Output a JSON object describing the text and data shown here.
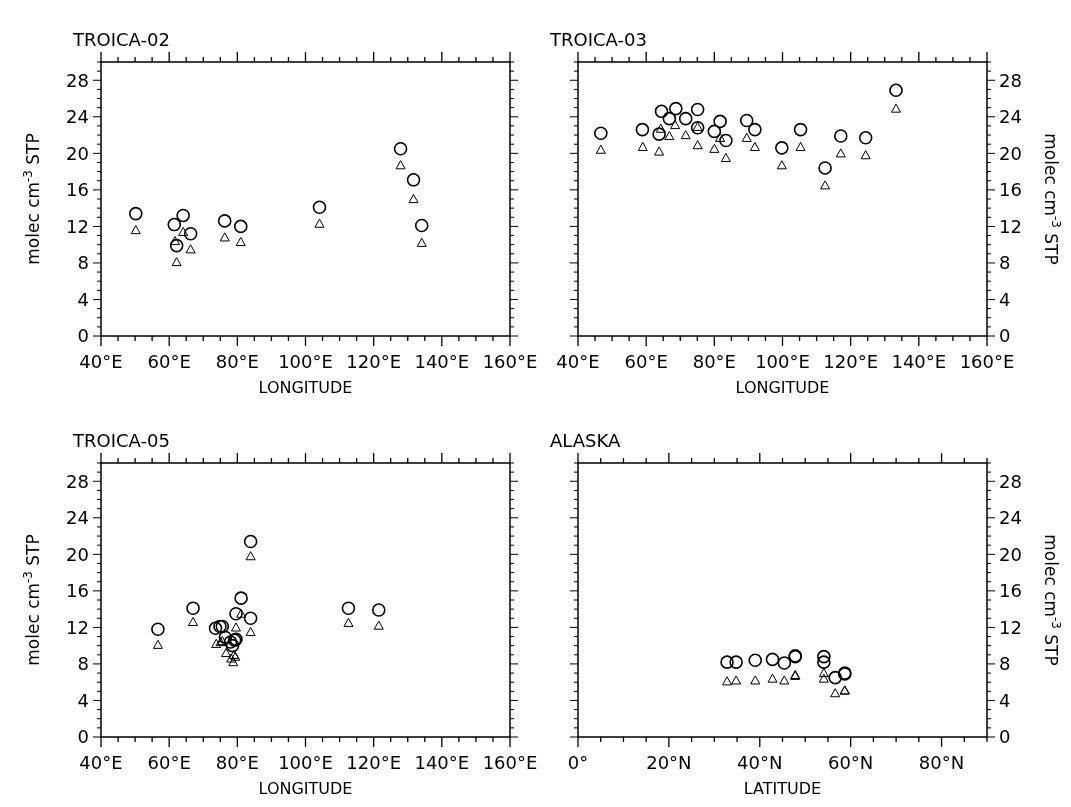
{
  "chart_data": [
    {
      "type": "scatter",
      "title": "TROICA-02",
      "xlabel": "LONGITUDE",
      "ylabel": "molec cm$^{-3}$ STP",
      "xlim": [
        40,
        160
      ],
      "ylim": [
        0,
        30
      ],
      "xticks": [
        {
          "value": 40,
          "label": "40°E"
        },
        {
          "value": 45,
          "label": null
        },
        {
          "value": 50,
          "label": null
        },
        {
          "value": 55,
          "label": null
        },
        {
          "value": 60,
          "label": "60°E"
        },
        {
          "value": 65,
          "label": null
        },
        {
          "value": 70,
          "label": null
        },
        {
          "value": 75,
          "label": null
        },
        {
          "value": 80,
          "label": "80°E"
        },
        {
          "value": 85,
          "label": null
        },
        {
          "value": 90,
          "label": null
        },
        {
          "value": 95,
          "label": null
        },
        {
          "value": 100,
          "label": "100°E"
        },
        {
          "value": 105,
          "label": null
        },
        {
          "value": 110,
          "label": null
        },
        {
          "value": 115,
          "label": null
        },
        {
          "value": 120,
          "label": "120°E"
        },
        {
          "value": 125,
          "label": null
        },
        {
          "value": 130,
          "label": null
        },
        {
          "value": 135,
          "label": null
        },
        {
          "value": 140,
          "label": "140°E"
        },
        {
          "value": 145,
          "label": null
        },
        {
          "value": 150,
          "label": null
        },
        {
          "value": 155,
          "label": null
        },
        {
          "value": 160,
          "label": "160°E"
        }
      ],
      "yticks": [
        0,
        {
          "value": 1,
          "label": null
        },
        {
          "value": 2,
          "label": null
        },
        {
          "value": 3,
          "label": null
        },
        4,
        {
          "value": 5,
          "label": null
        },
        {
          "value": 6,
          "label": null
        },
        {
          "value": 7,
          "label": null
        },
        8,
        {
          "value": 9,
          "label": null
        },
        {
          "value": 10,
          "label": null
        },
        {
          "value": 11,
          "label": null
        },
        12,
        {
          "value": 13,
          "label": null
        },
        {
          "value": 14,
          "label": null
        },
        {
          "value": 15,
          "label": null
        },
        16,
        {
          "value": 17,
          "label": null
        },
        {
          "value": 18,
          "label": null
        },
        {
          "value": 19,
          "label": null
        },
        20,
        {
          "value": 21,
          "label": null
        },
        {
          "value": 22,
          "label": null
        },
        {
          "value": 23,
          "label": null
        },
        24,
        {
          "value": 25,
          "label": null
        },
        {
          "value": 26,
          "label": null
        },
        {
          "value": 27,
          "label": null
        },
        28,
        {
          "value": 29,
          "label": null
        },
        {
          "value": 30,
          "label": null
        }
      ],
      "series": [
        {
          "color": "#000000",
          "marker": "circle",
          "x": [
            50.2,
            61.5,
            62.2,
            64.1,
            66.3,
            76.3,
            81.0,
            104.1,
            127.9,
            131.7,
            134.1
          ],
          "values": [
            13.4,
            12.2,
            9.9,
            13.2,
            11.2,
            12.6,
            12.0,
            14.1,
            20.5,
            17.1,
            12.1
          ]
        },
        {
          "color": "#000000",
          "marker": "triangle",
          "x": [
            50.2,
            61.7,
            62.2,
            64.1,
            66.3,
            76.3,
            81.0,
            104.1,
            127.9,
            131.7,
            134.1
          ],
          "values": [
            11.6,
            10.4,
            8.1,
            11.4,
            9.5,
            10.8,
            10.3,
            12.3,
            18.7,
            15.0,
            10.2
          ]
        }
      ]
    },
    {
      "type": "scatter",
      "title": "TROICA-03",
      "xlabel": "LONGITUDE",
      "ylabel": "molec cm$^{-3}$ STP",
      "xlim": [
        40,
        160
      ],
      "ylim": [
        0,
        30
      ],
      "xticks": [
        {
          "value": 40,
          "label": "40°E"
        },
        {
          "value": 45,
          "label": null
        },
        {
          "value": 50,
          "label": null
        },
        {
          "value": 55,
          "label": null
        },
        {
          "value": 60,
          "label": "60°E"
        },
        {
          "value": 65,
          "label": null
        },
        {
          "value": 70,
          "label": null
        },
        {
          "value": 75,
          "label": null
        },
        {
          "value": 80,
          "label": "80°E"
        },
        {
          "value": 85,
          "label": null
        },
        {
          "value": 90,
          "label": null
        },
        {
          "value": 95,
          "label": null
        },
        {
          "value": 100,
          "label": "100°E"
        },
        {
          "value": 105,
          "label": null
        },
        {
          "value": 110,
          "label": null
        },
        {
          "value": 115,
          "label": null
        },
        {
          "value": 120,
          "label": "120°E"
        },
        {
          "value": 125,
          "label": null
        },
        {
          "value": 130,
          "label": null
        },
        {
          "value": 135,
          "label": null
        },
        {
          "value": 140,
          "label": "140°E"
        },
        {
          "value": 145,
          "label": null
        },
        {
          "value": 150,
          "label": null
        },
        {
          "value": 155,
          "label": null
        },
        {
          "value": 160,
          "label": "160°E"
        }
      ],
      "yticks": [
        0,
        {
          "value": 1,
          "label": null
        },
        {
          "value": 2,
          "label": null
        },
        {
          "value": 3,
          "label": null
        },
        4,
        {
          "value": 5,
          "label": null
        },
        {
          "value": 6,
          "label": null
        },
        {
          "value": 7,
          "label": null
        },
        8,
        {
          "value": 9,
          "label": null
        },
        {
          "value": 10,
          "label": null
        },
        {
          "value": 11,
          "label": null
        },
        12,
        {
          "value": 13,
          "label": null
        },
        {
          "value": 14,
          "label": null
        },
        {
          "value": 15,
          "label": null
        },
        16,
        {
          "value": 17,
          "label": null
        },
        {
          "value": 18,
          "label": null
        },
        {
          "value": 19,
          "label": null
        },
        20,
        {
          "value": 21,
          "label": null
        },
        {
          "value": 22,
          "label": null
        },
        {
          "value": 23,
          "label": null
        },
        24,
        {
          "value": 25,
          "label": null
        },
        {
          "value": 26,
          "label": null
        },
        {
          "value": 27,
          "label": null
        },
        28,
        {
          "value": 29,
          "label": null
        },
        {
          "value": 30,
          "label": null
        }
      ],
      "series": [
        {
          "color": "#000000",
          "marker": "circle",
          "x": [
            46.7,
            58.9,
            63.8,
            64.5,
            66.8,
            68.7,
            71.6,
            75.1,
            75.1,
            80.0,
            81.7,
            83.4,
            89.5,
            91.9,
            99.8,
            105.3,
            112.5,
            117.1,
            124.4,
            133.3
          ],
          "values": [
            22.2,
            22.6,
            22.1,
            24.6,
            23.8,
            24.9,
            23.8,
            24.8,
            22.8,
            22.4,
            23.5,
            21.4,
            23.6,
            22.6,
            20.6,
            22.6,
            18.4,
            21.9,
            21.7,
            26.9
          ]
        },
        {
          "color": "#000000",
          "marker": "triangle",
          "x": [
            46.7,
            59.0,
            63.8,
            64.3,
            66.8,
            68.5,
            71.6,
            75.1,
            75.1,
            80.0,
            81.7,
            83.4,
            89.5,
            91.9,
            99.8,
            105.3,
            112.5,
            117.1,
            124.4,
            133.3
          ],
          "values": [
            20.4,
            20.7,
            20.2,
            22.7,
            21.9,
            23.1,
            22.0,
            20.9,
            22.9,
            20.5,
            21.7,
            19.5,
            21.7,
            20.7,
            18.7,
            20.7,
            16.5,
            20.0,
            19.8,
            24.9
          ]
        }
      ]
    },
    {
      "type": "scatter",
      "title": "TROICA-05",
      "xlabel": "LONGITUDE",
      "ylabel": "molec cm$^{-3}$ STP",
      "xlim": [
        40,
        160
      ],
      "ylim": [
        0,
        30
      ],
      "xticks": [
        {
          "value": 40,
          "label": "40°E"
        },
        {
          "value": 45,
          "label": null
        },
        {
          "value": 50,
          "label": null
        },
        {
          "value": 55,
          "label": null
        },
        {
          "value": 60,
          "label": "60°E"
        },
        {
          "value": 65,
          "label": null
        },
        {
          "value": 70,
          "label": null
        },
        {
          "value": 75,
          "label": null
        },
        {
          "value": 80,
          "label": "80°E"
        },
        {
          "value": 85,
          "label": null
        },
        {
          "value": 90,
          "label": null
        },
        {
          "value": 95,
          "label": null
        },
        {
          "value": 100,
          "label": "100°E"
        },
        {
          "value": 105,
          "label": null
        },
        {
          "value": 110,
          "label": null
        },
        {
          "value": 115,
          "label": null
        },
        {
          "value": 120,
          "label": "120°E"
        },
        {
          "value": 125,
          "label": null
        },
        {
          "value": 130,
          "label": null
        },
        {
          "value": 135,
          "label": null
        },
        {
          "value": 140,
          "label": "140°E"
        },
        {
          "value": 145,
          "label": null
        },
        {
          "value": 150,
          "label": null
        },
        {
          "value": 155,
          "label": null
        },
        {
          "value": 160,
          "label": "160°E"
        }
      ],
      "yticks": [
        0,
        {
          "value": 1,
          "label": null
        },
        {
          "value": 2,
          "label": null
        },
        {
          "value": 3,
          "label": null
        },
        4,
        {
          "value": 5,
          "label": null
        },
        {
          "value": 6,
          "label": null
        },
        {
          "value": 7,
          "label": null
        },
        8,
        {
          "value": 9,
          "label": null
        },
        {
          "value": 10,
          "label": null
        },
        {
          "value": 11,
          "label": null
        },
        12,
        {
          "value": 13,
          "label": null
        },
        {
          "value": 14,
          "label": null
        },
        {
          "value": 15,
          "label": null
        },
        16,
        {
          "value": 17,
          "label": null
        },
        {
          "value": 18,
          "label": null
        },
        {
          "value": 19,
          "label": null
        },
        20,
        {
          "value": 21,
          "label": null
        },
        {
          "value": 22,
          "label": null
        },
        {
          "value": 23,
          "label": null
        },
        24,
        {
          "value": 25,
          "label": null
        },
        {
          "value": 26,
          "label": null
        },
        {
          "value": 27,
          "label": null
        },
        28,
        {
          "value": 29,
          "label": null
        },
        {
          "value": 30,
          "label": null
        }
      ],
      "series": [
        {
          "color": "#000000",
          "marker": "circle",
          "x": [
            56.7,
            67.0,
            73.6,
            74.9,
            75.6,
            76.5,
            78.0,
            78.6,
            79.2,
            79.6,
            79.6,
            81.1,
            83.9,
            83.9,
            112.6,
            121.5
          ],
          "values": [
            11.8,
            14.1,
            11.9,
            12.1,
            12.1,
            10.9,
            10.4,
            10.0,
            10.6,
            10.7,
            13.5,
            15.2,
            13.0,
            21.4,
            14.1,
            13.9
          ]
        },
        {
          "color": "#000000",
          "marker": "triangle",
          "x": [
            56.7,
            67.0,
            73.8,
            75.1,
            75.6,
            76.7,
            78.2,
            78.8,
            79.0,
            79.4,
            79.6,
            81.1,
            83.9,
            83.9,
            112.6,
            121.5
          ],
          "values": [
            10.1,
            12.6,
            10.2,
            10.4,
            10.5,
            9.2,
            8.6,
            8.2,
            9.0,
            8.8,
            12.0,
            13.5,
            19.8,
            11.5,
            12.5,
            12.2
          ]
        }
      ]
    },
    {
      "type": "scatter",
      "title": "ALASKA",
      "xlabel": "LATITUDE",
      "ylabel": "molec cm$^{-3}$ STP",
      "xlim": [
        0,
        90
      ],
      "ylim": [
        0,
        30
      ],
      "xticks": [
        {
          "value": 0,
          "label": "0°"
        },
        {
          "value": 5,
          "label": null
        },
        {
          "value": 10,
          "label": null
        },
        {
          "value": 15,
          "label": null
        },
        {
          "value": 20,
          "label": "20°N"
        },
        {
          "value": 25,
          "label": null
        },
        {
          "value": 30,
          "label": null
        },
        {
          "value": 35,
          "label": null
        },
        {
          "value": 40,
          "label": "40°N"
        },
        {
          "value": 45,
          "label": null
        },
        {
          "value": 50,
          "label": null
        },
        {
          "value": 55,
          "label": null
        },
        {
          "value": 60,
          "label": "60°N"
        },
        {
          "value": 65,
          "label": null
        },
        {
          "value": 70,
          "label": null
        },
        {
          "value": 75,
          "label": null
        },
        {
          "value": 80,
          "label": "80°N"
        },
        {
          "value": 85,
          "label": null
        },
        {
          "value": 90,
          "label": null
        }
      ],
      "yticks": [
        0,
        {
          "value": 1,
          "label": null
        },
        {
          "value": 2,
          "label": null
        },
        {
          "value": 3,
          "label": null
        },
        4,
        {
          "value": 5,
          "label": null
        },
        {
          "value": 6,
          "label": null
        },
        {
          "value": 7,
          "label": null
        },
        8,
        {
          "value": 9,
          "label": null
        },
        {
          "value": 10,
          "label": null
        },
        {
          "value": 11,
          "label": null
        },
        12,
        {
          "value": 13,
          "label": null
        },
        {
          "value": 14,
          "label": null
        },
        {
          "value": 15,
          "label": null
        },
        16,
        {
          "value": 17,
          "label": null
        },
        {
          "value": 18,
          "label": null
        },
        {
          "value": 19,
          "label": null
        },
        20,
        {
          "value": 21,
          "label": null
        },
        {
          "value": 22,
          "label": null
        },
        {
          "value": 23,
          "label": null
        },
        24,
        {
          "value": 25,
          "label": null
        },
        {
          "value": 26,
          "label": null
        },
        {
          "value": 27,
          "label": null
        },
        28,
        {
          "value": 29,
          "label": null
        },
        {
          "value": 30,
          "label": null
        }
      ],
      "series": [
        {
          "color": "#000000",
          "marker": "circle",
          "x": [
            32.8,
            34.8,
            39.0,
            42.8,
            45.4,
            47.8,
            47.8,
            54.1,
            54.1,
            56.6,
            58.7,
            58.7
          ],
          "values": [
            8.2,
            8.2,
            8.4,
            8.5,
            8.1,
            8.8,
            8.9,
            8.8,
            8.2,
            6.5,
            6.9,
            7.0
          ]
        },
        {
          "color": "#000000",
          "marker": "triangle",
          "x": [
            32.8,
            34.8,
            39.0,
            42.8,
            45.4,
            47.8,
            47.8,
            54.1,
            54.1,
            56.6,
            58.7,
            58.7
          ],
          "values": [
            6.1,
            6.2,
            6.2,
            6.4,
            6.2,
            6.7,
            6.8,
            7.0,
            6.4,
            4.8,
            5.1,
            5.1
          ]
        }
      ]
    }
  ]
}
